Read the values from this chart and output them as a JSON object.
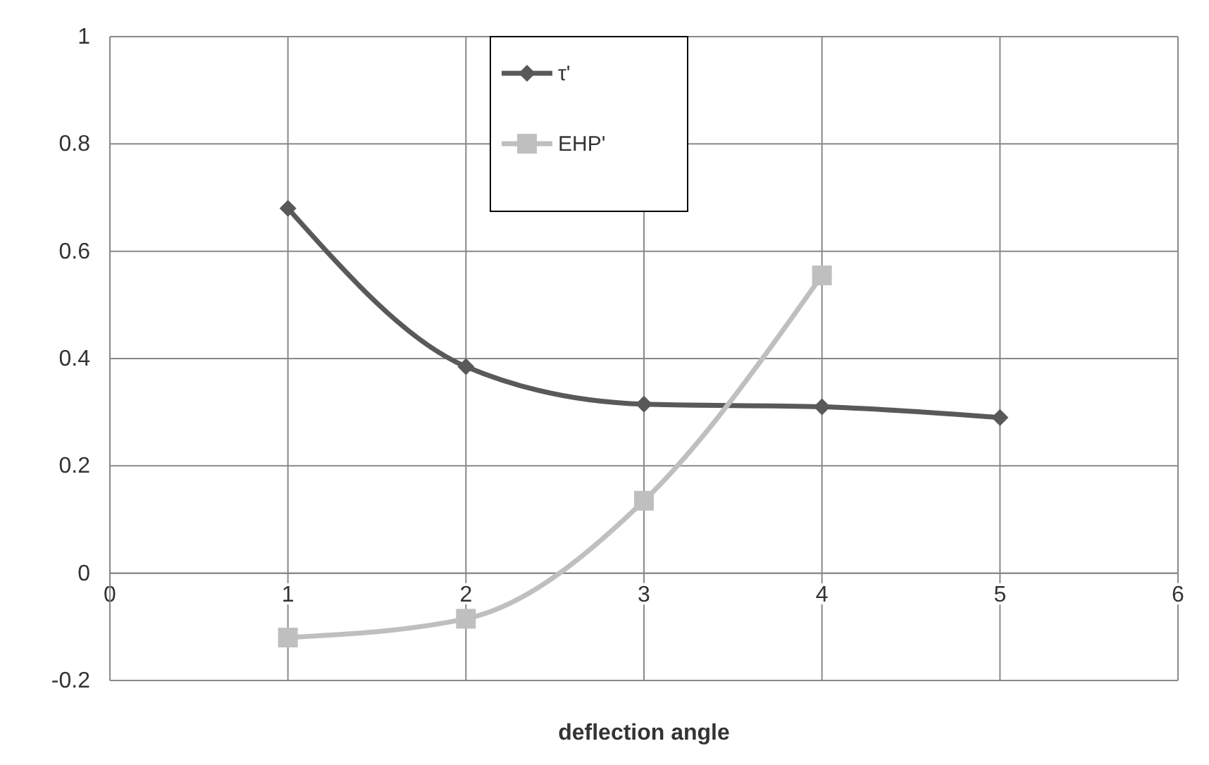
{
  "chart_data": {
    "type": "line",
    "xlabel": "deflection angle",
    "x": [
      1,
      2,
      3,
      4,
      5
    ],
    "series": [
      {
        "name": "τ'",
        "color": "#595959",
        "marker": "diamond",
        "values": [
          0.68,
          0.385,
          0.315,
          0.31,
          0.29
        ]
      },
      {
        "name": "EHP'",
        "color": "#bfbfbf",
        "marker": "square",
        "values": [
          -0.12,
          -0.085,
          0.135,
          0.555,
          null
        ]
      }
    ],
    "xlim": [
      0,
      6
    ],
    "xticks": [
      0,
      1,
      2,
      3,
      4,
      5,
      6
    ],
    "ylim": [
      -0.2,
      1
    ],
    "yticks": [
      -0.2,
      0,
      0.2,
      0.4,
      0.6,
      0.8,
      1
    ],
    "grid": true,
    "legend": "top",
    "line_style": "solid"
  }
}
